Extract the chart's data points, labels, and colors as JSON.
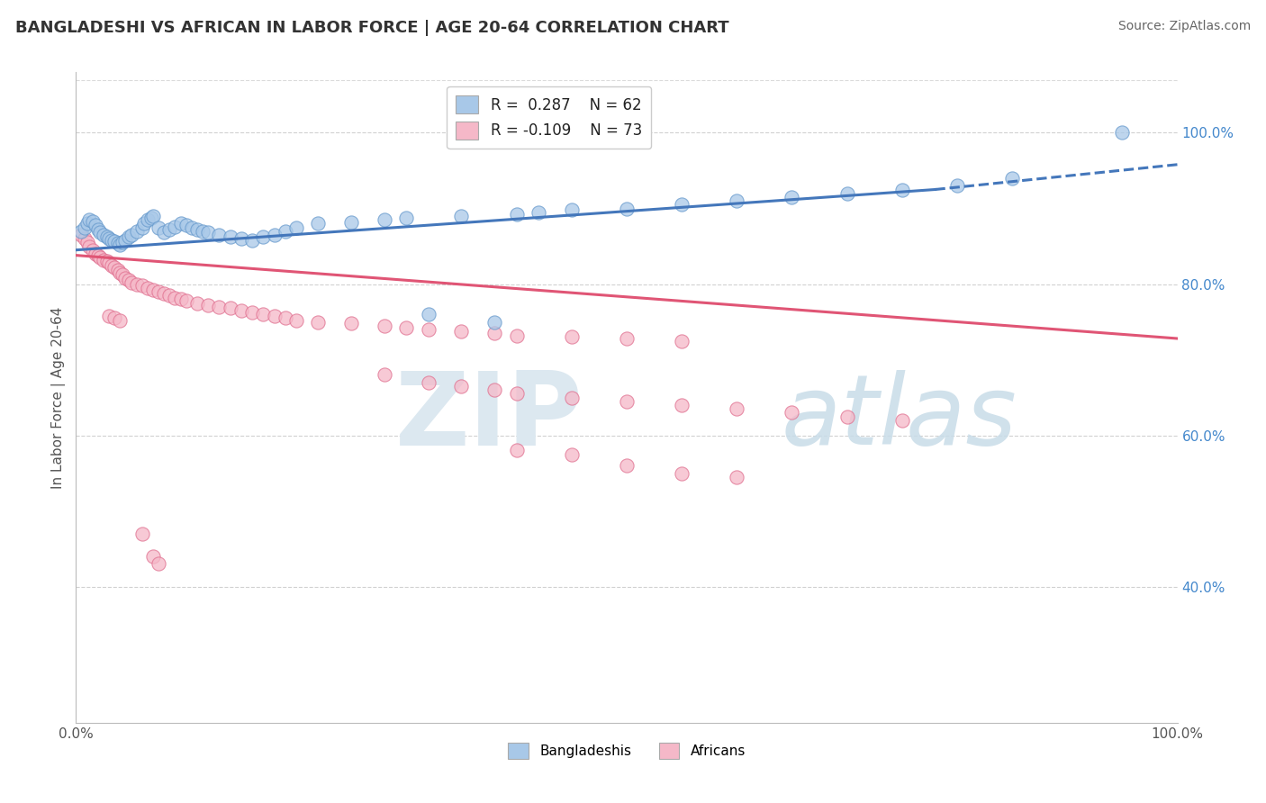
{
  "title": "BANGLADESHI VS AFRICAN IN LABOR FORCE | AGE 20-64 CORRELATION CHART",
  "source": "Source: ZipAtlas.com",
  "ylabel": "In Labor Force | Age 20-64",
  "xlim": [
    0.0,
    1.0
  ],
  "ylim": [
    0.22,
    1.08
  ],
  "y_tick_vals_right": [
    0.4,
    0.6,
    0.8,
    1.0
  ],
  "y_tick_labels_right": [
    "40.0%",
    "60.0%",
    "80.0%",
    "100.0%"
  ],
  "legend_r1": "R =  0.287",
  "legend_n1": "N = 62",
  "legend_r2": "R = -0.109",
  "legend_n2": "N = 73",
  "blue_color": "#a8c8e8",
  "blue_edge_color": "#6699cc",
  "pink_color": "#f5b8c8",
  "pink_edge_color": "#e07090",
  "blue_line_color": "#4477bb",
  "pink_line_color": "#e05575",
  "title_color": "#333333",
  "source_color": "#666666",
  "right_axis_color": "#4488cc",
  "grid_color": "#cccccc",
  "grid_dashed_color": "#cccccc",
  "blue_scatter_x": [
    0.005,
    0.008,
    0.01,
    0.012,
    0.015,
    0.018,
    0.02,
    0.022,
    0.025,
    0.028,
    0.03,
    0.032,
    0.035,
    0.038,
    0.04,
    0.042,
    0.045,
    0.048,
    0.05,
    0.055,
    0.06,
    0.062,
    0.065,
    0.068,
    0.07,
    0.075,
    0.08,
    0.085,
    0.09,
    0.095,
    0.1,
    0.105,
    0.11,
    0.115,
    0.12,
    0.13,
    0.14,
    0.15,
    0.16,
    0.17,
    0.18,
    0.19,
    0.2,
    0.22,
    0.25,
    0.28,
    0.3,
    0.35,
    0.4,
    0.42,
    0.45,
    0.5,
    0.55,
    0.6,
    0.65,
    0.7,
    0.75,
    0.8,
    0.85,
    0.95,
    0.38,
    0.32
  ],
  "blue_scatter_y": [
    0.87,
    0.875,
    0.88,
    0.885,
    0.883,
    0.878,
    0.872,
    0.868,
    0.865,
    0.862,
    0.86,
    0.858,
    0.856,
    0.854,
    0.852,
    0.855,
    0.858,
    0.862,
    0.865,
    0.87,
    0.875,
    0.88,
    0.885,
    0.888,
    0.89,
    0.875,
    0.868,
    0.872,
    0.876,
    0.88,
    0.878,
    0.875,
    0.872,
    0.87,
    0.868,
    0.865,
    0.862,
    0.86,
    0.858,
    0.862,
    0.865,
    0.87,
    0.875,
    0.88,
    0.882,
    0.885,
    0.888,
    0.89,
    0.892,
    0.895,
    0.898,
    0.9,
    0.905,
    0.91,
    0.915,
    0.92,
    0.925,
    0.93,
    0.94,
    1.0,
    0.75,
    0.76
  ],
  "pink_scatter_x": [
    0.005,
    0.008,
    0.01,
    0.012,
    0.015,
    0.018,
    0.02,
    0.022,
    0.025,
    0.028,
    0.03,
    0.032,
    0.035,
    0.038,
    0.04,
    0.042,
    0.045,
    0.048,
    0.05,
    0.055,
    0.06,
    0.065,
    0.07,
    0.075,
    0.08,
    0.085,
    0.09,
    0.095,
    0.1,
    0.11,
    0.12,
    0.13,
    0.14,
    0.15,
    0.16,
    0.17,
    0.18,
    0.19,
    0.2,
    0.22,
    0.25,
    0.28,
    0.3,
    0.32,
    0.35,
    0.38,
    0.4,
    0.45,
    0.5,
    0.55,
    0.28,
    0.32,
    0.35,
    0.38,
    0.4,
    0.45,
    0.5,
    0.55,
    0.6,
    0.65,
    0.7,
    0.75,
    0.4,
    0.45,
    0.5,
    0.55,
    0.6,
    0.03,
    0.035,
    0.04,
    0.06,
    0.07,
    0.075
  ],
  "pink_scatter_y": [
    0.865,
    0.86,
    0.855,
    0.85,
    0.845,
    0.84,
    0.838,
    0.835,
    0.832,
    0.83,
    0.828,
    0.825,
    0.822,
    0.818,
    0.815,
    0.812,
    0.808,
    0.805,
    0.802,
    0.8,
    0.798,
    0.795,
    0.792,
    0.79,
    0.788,
    0.785,
    0.782,
    0.78,
    0.778,
    0.775,
    0.772,
    0.77,
    0.768,
    0.765,
    0.762,
    0.76,
    0.758,
    0.755,
    0.752,
    0.75,
    0.748,
    0.745,
    0.742,
    0.74,
    0.738,
    0.735,
    0.732,
    0.73,
    0.728,
    0.725,
    0.68,
    0.67,
    0.665,
    0.66,
    0.655,
    0.65,
    0.645,
    0.64,
    0.635,
    0.63,
    0.625,
    0.62,
    0.58,
    0.575,
    0.56,
    0.55,
    0.545,
    0.758,
    0.755,
    0.752,
    0.47,
    0.44,
    0.43
  ],
  "blue_line": [
    0.0,
    0.78,
    0.845,
    0.925
  ],
  "blue_dash": [
    0.78,
    1.0,
    0.925,
    0.958
  ],
  "pink_line": [
    0.0,
    1.0,
    0.838,
    0.728
  ]
}
